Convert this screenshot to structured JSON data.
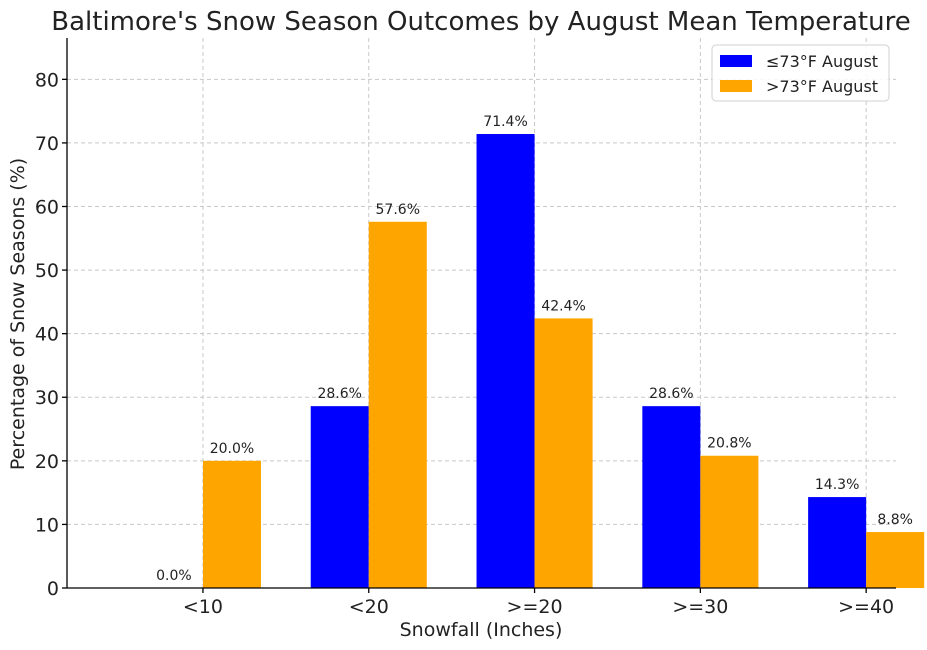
{
  "chart_data": {
    "type": "bar",
    "title": "Baltimore's Snow Season Outcomes by August Mean Temperature",
    "xlabel": "Snowfall (Inches)",
    "ylabel": "Percentage of Snow Seasons (%)",
    "categories": [
      "<10",
      "<20",
      ">=20",
      ">=30",
      ">=40"
    ],
    "series": [
      {
        "name": "≤73°F August",
        "color": "#0000ff",
        "values": [
          0.0,
          28.6,
          71.4,
          28.6,
          14.3
        ],
        "labels": [
          "0.0%",
          "28.6%",
          "71.4%",
          "28.6%",
          "14.3%"
        ]
      },
      {
        "name": ">73°F August",
        "color": "#ffa500",
        "values": [
          20.0,
          57.6,
          42.4,
          20.8,
          8.8
        ],
        "labels": [
          "20.0%",
          "57.6%",
          "42.4%",
          "20.8%",
          "8.8%"
        ]
      }
    ],
    "ylim": [
      0,
      86.5
    ],
    "yticks": [
      0,
      10,
      20,
      30,
      40,
      50,
      60,
      70,
      80
    ],
    "grid": true,
    "legend_position": "top-right"
  }
}
